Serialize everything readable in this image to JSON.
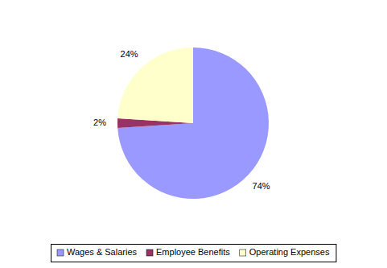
{
  "chart_data": {
    "type": "pie",
    "categories": [
      "Wages & Salaries",
      "Employee Benefits",
      "Operating Expenses"
    ],
    "values": [
      74,
      2,
      24
    ],
    "value_labels": [
      "74%",
      "2%",
      "24%"
    ],
    "colors": [
      "#9999ff",
      "#993366",
      "#ffffcc"
    ],
    "data_labels": true,
    "legend": "bottom"
  }
}
